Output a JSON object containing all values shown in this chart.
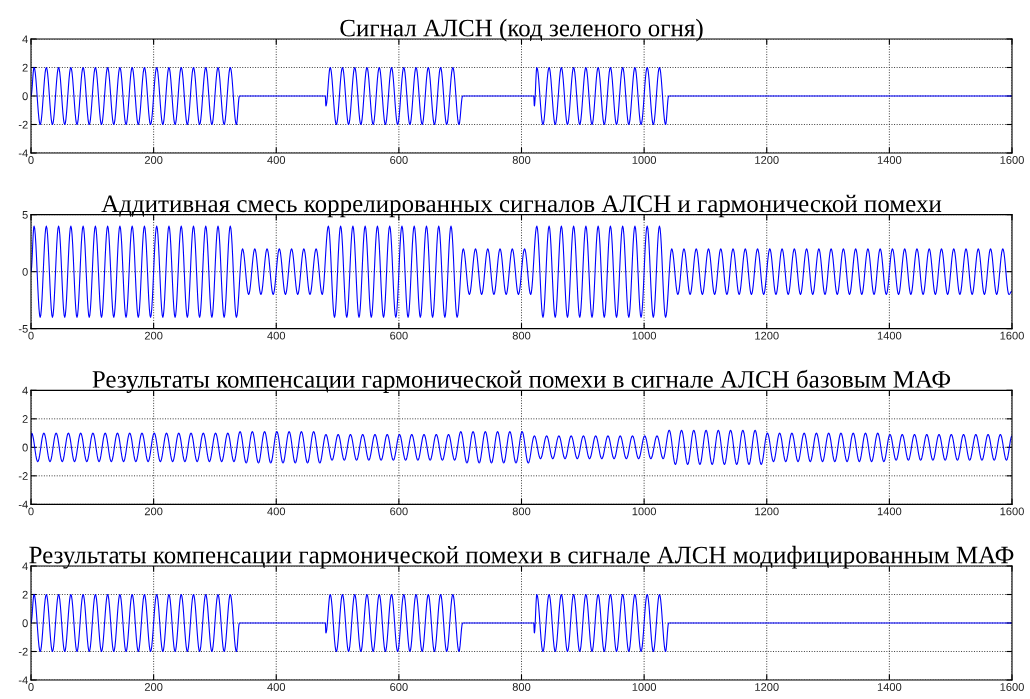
{
  "chart_data": [
    {
      "type": "line",
      "title": "Сигнал АЛСН (код зеленого огня)",
      "xlim": [
        0,
        1600
      ],
      "xticks": [
        0,
        200,
        400,
        600,
        800,
        1000,
        1200,
        1400,
        1600
      ],
      "ylim": [
        -4,
        4
      ],
      "yticks": [
        -4,
        -2,
        0,
        2,
        4
      ],
      "grid": true,
      "series": [
        {
          "color": "#0000ff",
          "x": [
            0,
            5,
            15,
            25,
            35,
            45,
            55,
            65,
            75,
            85,
            95,
            105,
            115,
            125,
            135,
            145,
            155,
            165,
            175,
            185,
            195,
            205,
            215,
            225,
            235,
            245,
            255,
            265,
            275,
            285,
            295,
            305,
            315,
            325,
            335,
            340,
            480,
            481,
            488,
            498,
            508,
            518,
            528,
            538,
            548,
            558,
            568,
            578,
            588,
            598,
            608,
            618,
            628,
            638,
            648,
            658,
            668,
            678,
            688,
            698,
            704,
            820,
            821,
            825,
            835,
            845,
            855,
            865,
            875,
            885,
            895,
            905,
            915,
            925,
            935,
            945,
            955,
            965,
            975,
            985,
            995,
            1005,
            1015,
            1025,
            1035,
            1040,
            1600
          ],
          "values": [
            0,
            2,
            -2,
            2,
            -2,
            2,
            -2,
            2,
            -2,
            2,
            -2,
            2,
            -2,
            2,
            -2,
            2,
            -2,
            2,
            -2,
            2,
            -2,
            2,
            -2,
            2,
            -2,
            2,
            -2,
            2,
            -2,
            2,
            -2,
            2,
            -2,
            2,
            -2,
            0,
            0,
            -0.7,
            2,
            -2,
            2,
            -2,
            2,
            -2,
            2,
            -2,
            2,
            -2,
            2,
            -2,
            2,
            -2,
            2,
            -2,
            2,
            -2,
            2,
            -2,
            2,
            -2,
            0,
            0,
            -0.7,
            2,
            -2,
            2,
            -2,
            2,
            -2,
            2,
            -2,
            2,
            -2,
            2,
            -2,
            2,
            -2,
            2,
            -2,
            2,
            -2,
            2,
            -2,
            2,
            -2,
            0,
            0
          ]
        }
      ]
    },
    {
      "type": "line",
      "title": "Аддитивная смесь коррелированных сигналов АЛСН и гармонической помехи",
      "xlim": [
        0,
        1600
      ],
      "xticks": [
        0,
        200,
        400,
        600,
        800,
        1000,
        1200,
        1400,
        1600
      ],
      "ylim": [
        -5,
        5
      ],
      "yticks": [
        -5,
        0,
        5
      ],
      "grid": true,
      "series": [
        {
          "color": "#0000ff",
          "x": [
            0,
            5,
            15,
            25,
            35,
            45,
            55,
            65,
            75,
            85,
            95,
            105,
            115,
            125,
            135,
            145,
            155,
            165,
            175,
            185,
            195,
            205,
            215,
            225,
            235,
            245,
            255,
            265,
            275,
            285,
            295,
            305,
            315,
            325,
            335,
            345,
            355,
            365,
            375,
            385,
            395,
            405,
            415,
            425,
            435,
            445,
            455,
            465,
            475,
            485,
            495,
            505,
            515,
            525,
            535,
            545,
            555,
            565,
            575,
            585,
            595,
            605,
            615,
            625,
            635,
            645,
            655,
            665,
            675,
            685,
            695,
            705,
            715,
            725,
            735,
            745,
            755,
            765,
            775,
            785,
            795,
            805,
            815,
            825,
            835,
            845,
            855,
            865,
            875,
            885,
            895,
            905,
            915,
            925,
            935,
            945,
            955,
            965,
            975,
            985,
            995,
            1005,
            1015,
            1025,
            1035,
            1045,
            1055,
            1065,
            1075,
            1085,
            1095,
            1105,
            1115,
            1125,
            1135,
            1145,
            1155,
            1165,
            1175,
            1185,
            1195,
            1205,
            1215,
            1225,
            1235,
            1245,
            1255,
            1265,
            1275,
            1285,
            1295,
            1305,
            1315,
            1325,
            1335,
            1345,
            1355,
            1365,
            1375,
            1385,
            1395,
            1405,
            1415,
            1425,
            1435,
            1445,
            1455,
            1465,
            1475,
            1485,
            1495,
            1505,
            1515,
            1525,
            1535,
            1545,
            1555,
            1565,
            1575,
            1585,
            1595,
            1600
          ],
          "values": [
            0,
            4,
            -4,
            4,
            -4,
            4,
            -4,
            4,
            -4,
            4,
            -4,
            4,
            -4,
            4,
            -4,
            4,
            -4,
            4,
            -4,
            4,
            -4,
            4,
            -4,
            4,
            -4,
            4,
            -4,
            4,
            -4,
            4,
            -4,
            4,
            -4,
            4,
            -4,
            2,
            -2,
            2,
            -2,
            2,
            -2,
            2,
            -2,
            2,
            -2,
            2,
            -2,
            2,
            -2,
            4,
            -4,
            4,
            -4,
            4,
            -4,
            4,
            -4,
            4,
            -4,
            4,
            -4,
            4,
            -4,
            4,
            -4,
            4,
            -4,
            4,
            -4,
            4,
            -4,
            2,
            -2,
            2,
            -2,
            2,
            -2,
            2,
            -2,
            2,
            -2,
            2,
            -2,
            4,
            -4,
            4,
            -4,
            4,
            -4,
            4,
            -4,
            4,
            -4,
            4,
            -4,
            4,
            -4,
            4,
            -4,
            4,
            -4,
            4,
            -4,
            4,
            -4,
            2,
            -2,
            2,
            -2,
            2,
            -2,
            2,
            -2,
            2,
            -2,
            2,
            -2,
            2,
            -2,
            2,
            -2,
            2,
            -2,
            2,
            -2,
            2,
            -2,
            2,
            -2,
            2,
            -2,
            2,
            -2,
            2,
            -2,
            2,
            -2,
            2,
            -2,
            2,
            -2,
            2,
            -2,
            2,
            -2,
            2,
            -2,
            2,
            -2,
            2,
            -2,
            2,
            -2,
            2,
            -2,
            2,
            -2,
            2,
            -2,
            2,
            -2,
            -1.7
          ]
        }
      ]
    },
    {
      "type": "line",
      "title": "Результаты компенсации гармонической помехи в сигнале АЛСН базовым МАФ",
      "xlim": [
        0,
        1600
      ],
      "xticks": [
        0,
        200,
        400,
        600,
        800,
        1000,
        1200,
        1400,
        1600
      ],
      "ylim": [
        -4,
        4
      ],
      "yticks": [
        -4,
        -2,
        0,
        2,
        4
      ],
      "grid": true,
      "series": [
        {
          "color": "#0000ff",
          "x": [
            0,
            1,
            11,
            21,
            31,
            41,
            51,
            61,
            71,
            81,
            91,
            101,
            111,
            121,
            131,
            141,
            151,
            161,
            171,
            181,
            191,
            201,
            211,
            221,
            231,
            241,
            251,
            261,
            271,
            281,
            291,
            301,
            311,
            321,
            331,
            341,
            351,
            361,
            371,
            381,
            391,
            401,
            411,
            421,
            431,
            441,
            451,
            461,
            471,
            481,
            491,
            501,
            511,
            521,
            531,
            541,
            551,
            561,
            571,
            581,
            591,
            601,
            611,
            621,
            631,
            641,
            651,
            661,
            671,
            681,
            691,
            701,
            711,
            721,
            731,
            741,
            751,
            761,
            771,
            781,
            791,
            801,
            811,
            821,
            831,
            841,
            851,
            861,
            871,
            881,
            891,
            901,
            911,
            921,
            931,
            941,
            951,
            961,
            971,
            981,
            991,
            1001,
            1011,
            1021,
            1031,
            1041,
            1051,
            1061,
            1071,
            1081,
            1091,
            1101,
            1111,
            1121,
            1131,
            1141,
            1151,
            1161,
            1171,
            1181,
            1191,
            1201,
            1211,
            1221,
            1231,
            1241,
            1251,
            1261,
            1271,
            1281,
            1291,
            1301,
            1311,
            1321,
            1331,
            1341,
            1351,
            1361,
            1371,
            1381,
            1391,
            1401,
            1411,
            1421,
            1431,
            1441,
            1451,
            1461,
            1471,
            1481,
            1491,
            1501,
            1511,
            1521,
            1531,
            1541,
            1551,
            1561,
            1571,
            1581,
            1591,
            1600
          ],
          "values": [
            0,
            1,
            -1,
            1,
            -1,
            1,
            -1,
            1,
            -1,
            1,
            -1,
            1,
            -1,
            1,
            -1,
            1,
            -1,
            1,
            -1,
            1,
            -1,
            1,
            -1,
            1,
            -1,
            1,
            -1,
            1,
            -1,
            1,
            -1,
            1,
            -1,
            1,
            -1,
            1.1,
            -1.1,
            1.1,
            -1.1,
            1.1,
            -1.1,
            1.1,
            -1.1,
            1.1,
            -1.1,
            1.1,
            -1.1,
            1.1,
            -1.1,
            0.9,
            -0.9,
            0.9,
            -0.9,
            0.9,
            -0.9,
            0.9,
            -0.9,
            0.9,
            -0.9,
            0.9,
            -0.9,
            0.9,
            -0.9,
            0.9,
            -0.9,
            0.9,
            -0.9,
            0.9,
            -0.9,
            0.9,
            -0.9,
            1.1,
            -1.1,
            1.1,
            -1.1,
            1.1,
            -1.1,
            1.1,
            -1.1,
            1.1,
            -1.1,
            1.1,
            -1.1,
            0.8,
            -0.8,
            0.8,
            -0.8,
            0.8,
            -0.8,
            0.8,
            -0.8,
            0.8,
            -0.8,
            0.8,
            -0.8,
            0.8,
            -0.8,
            0.8,
            -0.8,
            0.8,
            -0.8,
            0.8,
            -0.8,
            0.8,
            -0.8,
            1.2,
            -1.2,
            1.2,
            -1.2,
            1.2,
            -1.2,
            1.2,
            -1.2,
            1.2,
            -1.2,
            1.2,
            -1.2,
            1.2,
            -1.2,
            1.2,
            -1.2,
            1,
            -1,
            1,
            -1,
            1,
            -1,
            1,
            -1,
            1,
            -1,
            1,
            -1,
            1,
            -1,
            1,
            -1,
            1,
            -1,
            1,
            -1,
            0.9,
            -0.9,
            0.9,
            -0.9,
            0.9,
            -0.9,
            0.9,
            -0.9,
            0.9,
            -0.9,
            0.9,
            -0.9,
            0.9,
            -0.9,
            0.9,
            -0.9,
            0.9,
            -0.9,
            0.9,
            -0.9,
            0.8
          ]
        }
      ]
    },
    {
      "type": "line",
      "title": "Результаты компенсации гармонической помехи в сигнале АЛСН модифицированным МАФ",
      "xlim": [
        0,
        1600
      ],
      "xticks": [
        0,
        200,
        400,
        600,
        800,
        1000,
        1200,
        1400,
        1600
      ],
      "ylim": [
        -4,
        4
      ],
      "yticks": [
        -4,
        -2,
        0,
        2,
        4
      ],
      "grid": true,
      "series": [
        {
          "color": "#0000ff",
          "x": [
            0,
            5,
            15,
            25,
            35,
            45,
            55,
            65,
            75,
            85,
            95,
            105,
            115,
            125,
            135,
            145,
            155,
            165,
            175,
            185,
            195,
            205,
            215,
            225,
            235,
            245,
            255,
            265,
            275,
            285,
            295,
            305,
            315,
            325,
            335,
            340,
            480,
            481,
            488,
            498,
            508,
            518,
            528,
            538,
            548,
            558,
            568,
            578,
            588,
            598,
            608,
            618,
            628,
            638,
            648,
            658,
            668,
            678,
            688,
            698,
            704,
            820,
            821,
            825,
            835,
            845,
            855,
            865,
            875,
            885,
            895,
            905,
            915,
            925,
            935,
            945,
            955,
            965,
            975,
            985,
            995,
            1005,
            1015,
            1025,
            1035,
            1040,
            1600
          ],
          "values": [
            0,
            2,
            -2,
            2,
            -2,
            2,
            -2,
            2,
            -2,
            2,
            -2,
            2,
            -2,
            2,
            -2,
            2,
            -2,
            2,
            -2,
            2,
            -2,
            2,
            -2,
            2,
            -2,
            2,
            -2,
            2,
            -2,
            2,
            -2,
            2,
            -2,
            2,
            -2,
            0,
            0,
            -0.7,
            2,
            -2,
            2,
            -2,
            2,
            -2,
            2,
            -2,
            2,
            -2,
            2,
            -2,
            2,
            -2,
            2,
            -2,
            2,
            -2,
            2,
            -2,
            2,
            -2,
            0,
            0,
            -0.7,
            2,
            -2,
            2,
            -2,
            2,
            -2,
            2,
            -2,
            2,
            -2,
            2,
            -2,
            2,
            -2,
            2,
            -2,
            2,
            -2,
            2,
            -2,
            2,
            -2,
            0,
            0
          ]
        }
      ]
    }
  ]
}
